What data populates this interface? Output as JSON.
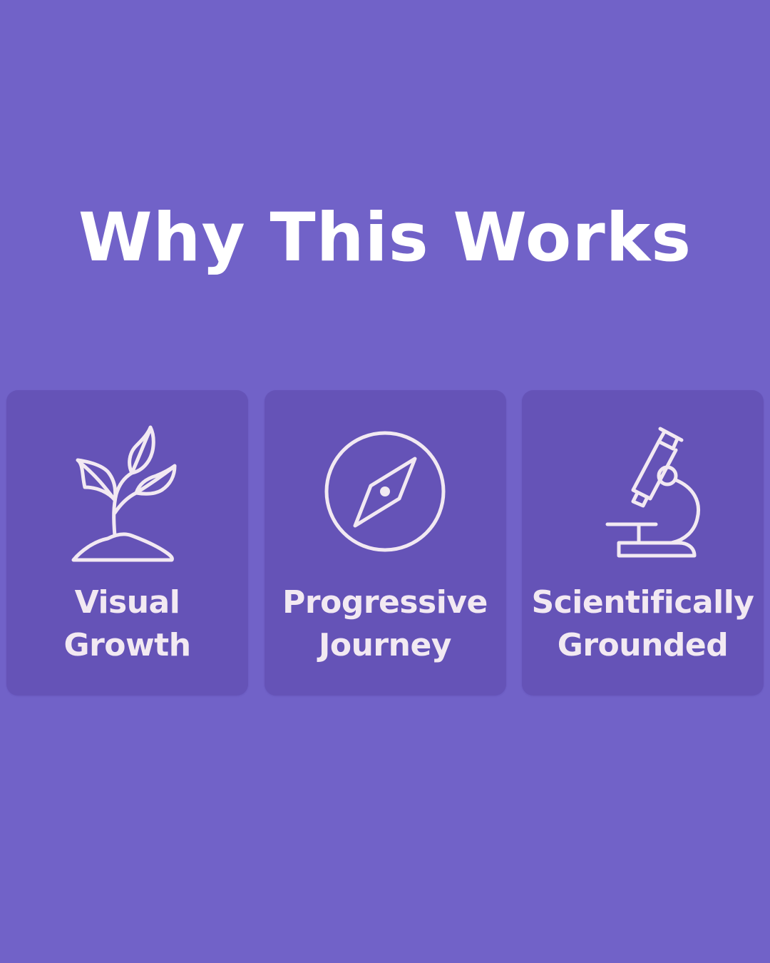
{
  "page": {
    "title": "Why This Works",
    "background_color": "#7162c8",
    "card_color": "#6553b7",
    "text_color": "#f2e9f2"
  },
  "cards": [
    {
      "icon": "plant-sprout-icon",
      "label_line1": "Visual",
      "label_line2": "Growth"
    },
    {
      "icon": "compass-icon",
      "label_line1": "Progressive",
      "label_line2": "Journey"
    },
    {
      "icon": "microscope-icon",
      "label_line1": "Scientifically",
      "label_line2": "Grounded"
    }
  ]
}
